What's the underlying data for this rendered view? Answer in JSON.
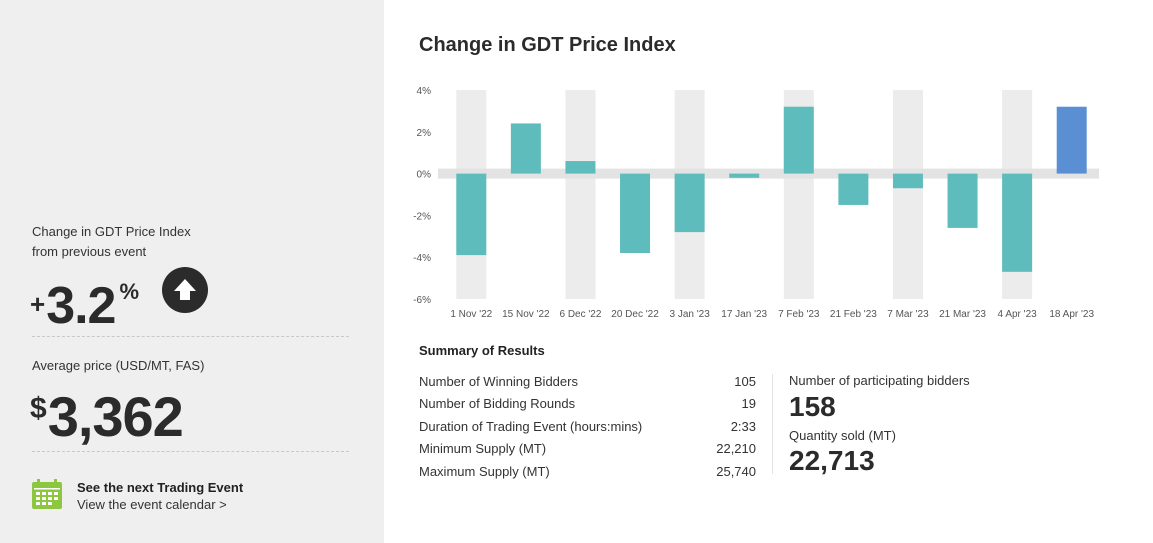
{
  "left_panel": {
    "change_label_line1": "Change in GDT Price Index",
    "change_label_line2": "from previous event",
    "change_sign": "+",
    "change_value": "3.2",
    "change_unit": "%",
    "direction_icon": "arrow-up-icon",
    "avg_price_label": "Average price (USD/MT, FAS)",
    "avg_currency": "$",
    "avg_price_value": "3,362",
    "next_event_title": "See the next Trading Event",
    "next_event_link": "View the event calendar >",
    "calendar_icon": "calendar-icon",
    "colors": {
      "panel_bg": "#efefef",
      "icon_green": "#8dc63f",
      "dark": "#2b2b2b"
    }
  },
  "chart_title": "Change in GDT Price Index",
  "chart_data": {
    "type": "bar",
    "title": "Change in GDT Price Index",
    "categories": [
      "1 Nov '22",
      "15 Nov '22",
      "6 Dec '22",
      "20 Dec '22",
      "3 Jan '23",
      "17 Jan '23",
      "7 Feb '23",
      "21 Feb '23",
      "7 Mar '23",
      "21 Mar '23",
      "4 Apr '23",
      "18 Apr '23"
    ],
    "values": [
      -3.9,
      2.4,
      0.6,
      -3.8,
      -2.8,
      -0.2,
      3.2,
      -1.5,
      -0.7,
      -2.6,
      -4.7,
      3.2
    ],
    "ylim": [
      -6,
      4
    ],
    "yticks": [
      "4%",
      "2%",
      "0%",
      "-2%",
      "-4%",
      "-6%"
    ],
    "ytick_values": [
      4,
      2,
      0,
      -2,
      -4,
      -6
    ],
    "highlight_index": 11,
    "colors": {
      "bar": "#5fbcbc",
      "highlight": "#5b8fd4",
      "stripe": "#ececec",
      "zero_band": "#e3e3e3"
    }
  },
  "summary": {
    "title": "Summary of Results",
    "rows": [
      {
        "label": "Number of Winning Bidders",
        "value": "105"
      },
      {
        "label": "Number of Bidding Rounds",
        "value": "19"
      },
      {
        "label": "Duration of Trading Event (hours:mins)",
        "value": "2:33"
      },
      {
        "label": "Minimum Supply (MT)",
        "value": "22,210"
      },
      {
        "label": "Maximum Supply (MT)",
        "value": "25,740"
      }
    ],
    "participating_label": "Number of participating bidders",
    "participating_value": "158",
    "quantity_label": "Quantity sold (MT)",
    "quantity_value": "22,713"
  }
}
